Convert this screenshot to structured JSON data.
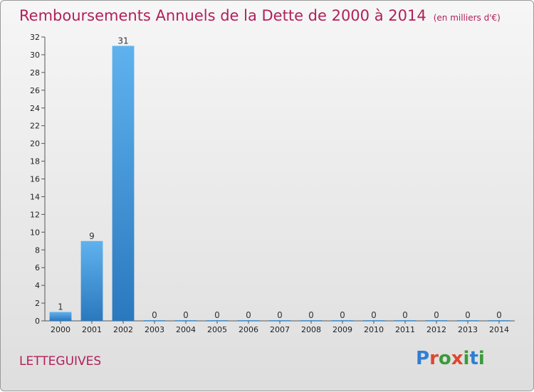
{
  "chart_data": {
    "type": "bar",
    "title": "Remboursements Annuels de la Dette de 2000 à 2014",
    "unit_note": "(en milliers d'€)",
    "categories": [
      "2000",
      "2001",
      "2002",
      "2003",
      "2004",
      "2005",
      "2006",
      "2007",
      "2008",
      "2009",
      "2010",
      "2011",
      "2012",
      "2013",
      "2014"
    ],
    "values": [
      1,
      9,
      31,
      0,
      0,
      0,
      0,
      0,
      0,
      0,
      0,
      0,
      0,
      0,
      0
    ],
    "ylim": [
      0,
      32
    ],
    "yticks": [
      0,
      2,
      4,
      6,
      8,
      10,
      12,
      14,
      16,
      18,
      20,
      22,
      24,
      26,
      28,
      30,
      32
    ],
    "xlabel": "",
    "ylabel": "",
    "bar_color": "#3d8fd6",
    "grid": false,
    "data_labels": true
  },
  "commune": "LETTEGUIVES",
  "logo": {
    "text": "Proxiti",
    "letter_colors": [
      "#2f7fd1",
      "#e0462f",
      "#3a9a3a",
      "#e0462f",
      "#3a9a3a",
      "#2f7fd1",
      "#3a9a3a"
    ]
  },
  "colors": {
    "title": "#b0205a",
    "background_top": "#f6f6f6",
    "background_bottom": "#dedede"
  }
}
